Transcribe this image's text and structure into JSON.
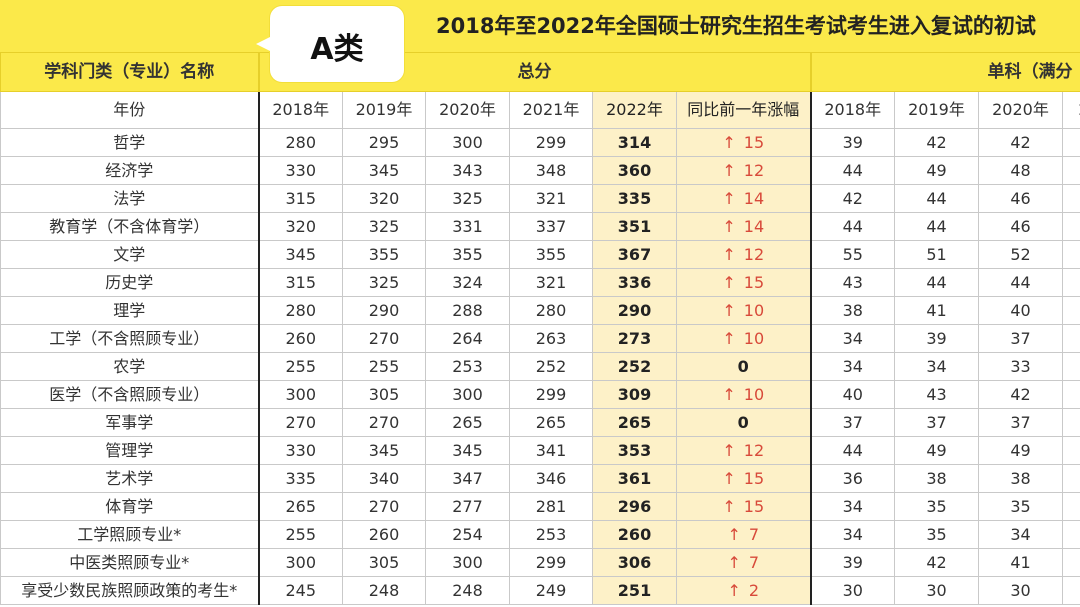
{
  "badge": "A类",
  "title": "2018年至2022年全国硕士研究生招生考试考生进入复试的初试",
  "header": {
    "category": "学科门类（专业）名称",
    "total": "总分",
    "single": "单科（满分"
  },
  "subheader": {
    "year_label": "年份",
    "total_years": [
      "2018年",
      "2019年",
      "2020年",
      "2021年",
      "2022年"
    ],
    "change": "同比前一年涨幅",
    "single_years": [
      "2018年",
      "2019年",
      "2020年",
      "2"
    ]
  },
  "rows": [
    {
      "name": "哲学",
      "t": [
        "280",
        "295",
        "300",
        "299",
        "314"
      ],
      "chg": "15",
      "s": [
        "39",
        "42",
        "42"
      ]
    },
    {
      "name": "经济学",
      "t": [
        "330",
        "345",
        "343",
        "348",
        "360"
      ],
      "chg": "12",
      "s": [
        "44",
        "49",
        "48"
      ]
    },
    {
      "name": "法学",
      "t": [
        "315",
        "320",
        "325",
        "321",
        "335"
      ],
      "chg": "14",
      "s": [
        "42",
        "44",
        "46"
      ]
    },
    {
      "name": "教育学（不含体育学）",
      "t": [
        "320",
        "325",
        "331",
        "337",
        "351"
      ],
      "chg": "14",
      "s": [
        "44",
        "44",
        "46"
      ]
    },
    {
      "name": "文学",
      "t": [
        "345",
        "355",
        "355",
        "355",
        "367"
      ],
      "chg": "12",
      "s": [
        "55",
        "51",
        "52"
      ]
    },
    {
      "name": "历史学",
      "t": [
        "315",
        "325",
        "324",
        "321",
        "336"
      ],
      "chg": "15",
      "s": [
        "43",
        "44",
        "44"
      ]
    },
    {
      "name": "理学",
      "t": [
        "280",
        "290",
        "288",
        "280",
        "290"
      ],
      "chg": "10",
      "s": [
        "38",
        "41",
        "40"
      ]
    },
    {
      "name": "工学（不含照顾专业）",
      "t": [
        "260",
        "270",
        "264",
        "263",
        "273"
      ],
      "chg": "10",
      "s": [
        "34",
        "39",
        "37"
      ]
    },
    {
      "name": "农学",
      "t": [
        "255",
        "255",
        "253",
        "252",
        "252"
      ],
      "chg": "0",
      "s": [
        "34",
        "34",
        "33"
      ]
    },
    {
      "name": "医学（不含照顾专业）",
      "t": [
        "300",
        "305",
        "300",
        "299",
        "309"
      ],
      "chg": "10",
      "s": [
        "40",
        "43",
        "42"
      ]
    },
    {
      "name": "军事学",
      "t": [
        "270",
        "270",
        "265",
        "265",
        "265"
      ],
      "chg": "0",
      "s": [
        "37",
        "37",
        "37"
      ]
    },
    {
      "name": "管理学",
      "t": [
        "330",
        "345",
        "345",
        "341",
        "353"
      ],
      "chg": "12",
      "s": [
        "44",
        "49",
        "49"
      ]
    },
    {
      "name": "艺术学",
      "t": [
        "335",
        "340",
        "347",
        "346",
        "361"
      ],
      "chg": "15",
      "s": [
        "36",
        "38",
        "38"
      ]
    },
    {
      "name": "体育学",
      "t": [
        "265",
        "270",
        "277",
        "281",
        "296"
      ],
      "chg": "15",
      "s": [
        "34",
        "35",
        "35"
      ]
    },
    {
      "name": "工学照顾专业*",
      "t": [
        "255",
        "260",
        "254",
        "253",
        "260"
      ],
      "chg": "7",
      "s": [
        "34",
        "35",
        "34"
      ]
    },
    {
      "name": "中医类照顾专业*",
      "t": [
        "300",
        "305",
        "300",
        "299",
        "306"
      ],
      "chg": "7",
      "s": [
        "39",
        "42",
        "41"
      ]
    },
    {
      "name": "享受少数民族照顾政策的考生*",
      "t": [
        "245",
        "248",
        "248",
        "249",
        "251"
      ],
      "chg": "2",
      "s": [
        "30",
        "30",
        "30"
      ]
    }
  ],
  "arrow_glyph": "↑",
  "colors": {
    "yellow": "#fbe94a",
    "highlight": "#fdf1c8",
    "up_red": "#d84a3a"
  }
}
